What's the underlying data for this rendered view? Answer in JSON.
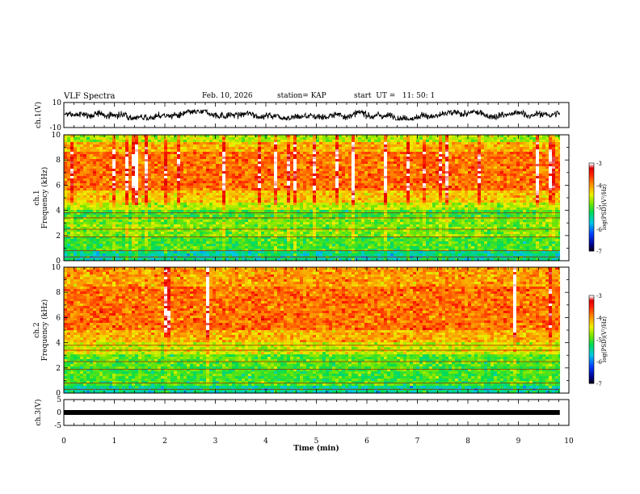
{
  "header": {
    "title": "VLF Spectra",
    "date": "Feb. 10, 2026",
    "station": "station= KAP",
    "start": "start  UT =   11: 50: 1"
  },
  "chart_data": [
    {
      "type": "line",
      "panel": "waveform-ch1",
      "ylabel": "ch.1(V)",
      "ylim": [
        -10,
        10
      ],
      "ytick_labels": [
        "-10",
        "10"
      ],
      "xlim": [
        0,
        10
      ],
      "x_data_end": 9.82,
      "approx_range": [
        -4,
        4
      ],
      "approx_mean": 0
    },
    {
      "type": "heatmap",
      "panel": "spectrogram-ch1",
      "ylabel_top": "ch.1",
      "ylabel": "Frequency (kHz)",
      "ylim": [
        0,
        10
      ],
      "ytick_labels": [
        "0",
        "2",
        "4",
        "6",
        "8",
        "10"
      ],
      "xlim": [
        0,
        10
      ],
      "x_data_end": 9.82,
      "bands_khz": [
        {
          "from": 0.0,
          "to": 0.8,
          "level": -5.4
        },
        {
          "from": 0.8,
          "to": 2.0,
          "level": -5.0
        },
        {
          "from": 2.0,
          "to": 3.4,
          "level": -4.8
        },
        {
          "from": 3.4,
          "to": 4.0,
          "level": -5.0
        },
        {
          "from": 4.0,
          "to": 4.6,
          "level": -4.6
        },
        {
          "from": 4.6,
          "to": 5.6,
          "level": -4.2
        },
        {
          "from": 5.6,
          "to": 8.6,
          "level": -3.8
        },
        {
          "from": 8.6,
          "to": 9.4,
          "level": -4.1
        },
        {
          "from": 9.4,
          "to": 10.0,
          "level": -4.6
        }
      ],
      "colorbar": {
        "label": "log(PSD)(V²/Hz)",
        "range": [
          -7,
          -3
        ],
        "tick_labels": [
          "-3",
          "-4",
          "-5",
          "-6",
          "-7"
        ]
      }
    },
    {
      "type": "heatmap",
      "panel": "spectrogram-ch2",
      "ylabel_top": "ch.2",
      "ylabel": "Frequency (kHz)",
      "ylim": [
        0,
        10
      ],
      "ytick_labels": [
        "0",
        "2",
        "4",
        "6",
        "8",
        "10"
      ],
      "xlim": [
        0,
        10
      ],
      "x_data_end": 9.82,
      "bands_khz": [
        {
          "from": 0.0,
          "to": 0.6,
          "level": -5.4
        },
        {
          "from": 0.6,
          "to": 2.2,
          "level": -5.0
        },
        {
          "from": 2.2,
          "to": 3.0,
          "level": -4.9
        },
        {
          "from": 3.0,
          "to": 4.0,
          "level": -4.5
        },
        {
          "from": 4.0,
          "to": 5.0,
          "level": -4.1
        },
        {
          "from": 5.0,
          "to": 8.5,
          "level": -3.8
        },
        {
          "from": 8.5,
          "to": 10.0,
          "level": -4.0
        }
      ],
      "colorbar": {
        "label": "log(PSD)(V²/Hz)",
        "range": [
          -7,
          -3
        ],
        "tick_labels": [
          "-3",
          "-4",
          "-5",
          "-6",
          "-7"
        ]
      }
    },
    {
      "type": "line",
      "panel": "waveform-ch3",
      "ylabel": "ch.3(V)",
      "ylim": [
        -5,
        5
      ],
      "ytick_labels": [
        "-5",
        "0",
        "5"
      ],
      "xlim": [
        0,
        10
      ],
      "x_data_end": 9.82,
      "approx_value": 0,
      "xlabel": "Time (min)",
      "xtick_labels": [
        "0",
        "1",
        "2",
        "3",
        "4",
        "5",
        "6",
        "7",
        "8",
        "9",
        "10"
      ]
    }
  ]
}
